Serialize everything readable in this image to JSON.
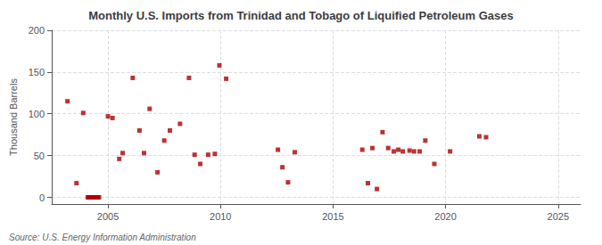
{
  "chart_data": {
    "type": "scatter",
    "title": "Monthly U.S. Imports from Trinidad and Tobago of Liquified Petroleum Gases",
    "ylabel": "Thousand Barrels",
    "annotations": [
      "Source: U.S. Energy Information Administration"
    ],
    "x": [
      2003.2,
      2003.6,
      2003.9,
      2004.1,
      2004.15,
      2004.2,
      2004.25,
      2004.3,
      2004.35,
      2004.4,
      2004.45,
      2004.5,
      2004.55,
      2004.6,
      2005.0,
      2005.2,
      2005.5,
      2005.65,
      2006.1,
      2006.4,
      2006.6,
      2006.85,
      2007.2,
      2007.5,
      2007.75,
      2008.2,
      2008.6,
      2008.85,
      2009.1,
      2009.45,
      2009.75,
      2009.95,
      2010.25,
      2012.55,
      2012.75,
      2013.0,
      2013.3,
      2016.3,
      2016.55,
      2016.75,
      2016.95,
      2017.2,
      2017.45,
      2017.7,
      2017.9,
      2018.1,
      2018.4,
      2018.6,
      2018.85,
      2019.1,
      2019.5,
      2020.2,
      2021.5,
      2021.8
    ],
    "values": [
      115,
      17,
      101,
      0,
      0,
      0,
      0,
      0,
      0,
      0,
      0,
      0,
      0,
      0,
      97,
      95,
      46,
      53,
      143,
      80,
      53,
      106,
      30,
      68,
      80,
      88,
      143,
      51,
      40,
      51,
      52,
      158,
      142,
      57,
      36,
      18,
      54,
      57,
      17,
      59,
      10,
      78,
      59,
      55,
      57,
      55,
      56,
      55,
      55,
      68,
      40,
      55,
      73,
      72
    ],
    "color": "#aa0000",
    "marker": "square",
    "xlim": [
      2002.5,
      2026
    ],
    "xticks": [
      2005,
      2010,
      2015,
      2020,
      2025
    ],
    "ylim": [
      -8,
      200
    ],
    "yticks": [
      0,
      50,
      100,
      150,
      200
    ],
    "grid": true
  }
}
